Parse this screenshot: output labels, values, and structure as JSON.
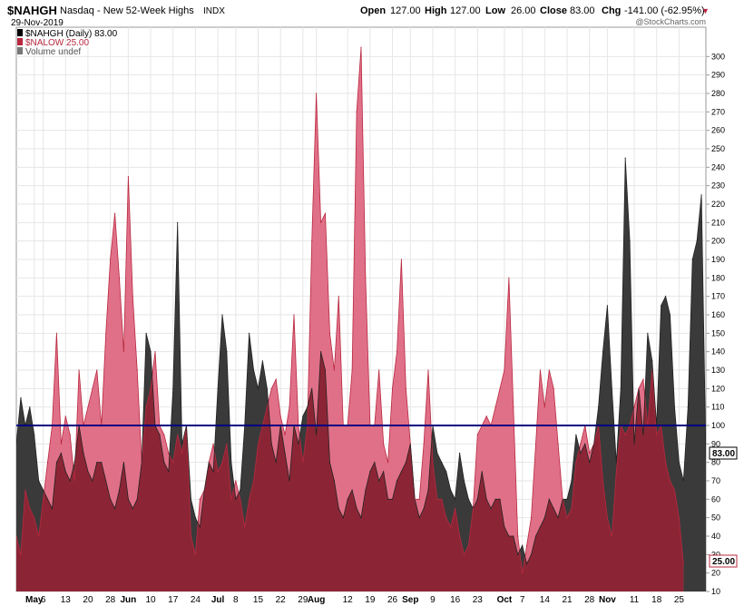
{
  "header": {
    "symbol": "$NAHGH",
    "name": "Nasdaq - New 52-Week Highs",
    "exchange": "INDX",
    "date": "29-Nov-2019",
    "open_label": "Open",
    "open": "127.00",
    "high_label": "High",
    "high": "127.00",
    "low_label": "Low",
    "low": "26.00",
    "close_label": "Close",
    "close": "83.00",
    "chg_label": "Chg",
    "chg": "-141.00 (-62.95%)",
    "chg_arrow": "▼",
    "watermark": "@StockCharts.com"
  },
  "legend": [
    {
      "text": "$NAHGH (Daily) 83.00",
      "color": "#000000"
    },
    {
      "text": "$NALOW 25.00",
      "color": "#b8283f"
    },
    {
      "text": "Volume undef",
      "color": "#555555"
    }
  ],
  "price_labels": {
    "highs": "83.00",
    "lows": "25.00"
  },
  "colors": {
    "highs_fill": "#3a3a3a",
    "lows_fill": "#e07088",
    "overlap_fill": "#8b2535",
    "lows_line": "#b8283f",
    "ref_line": "#000080",
    "grid": "#e6e6e6"
  },
  "chart_data": {
    "type": "area",
    "title": "$NAHGH Nasdaq - New 52-Week Highs",
    "ylim": [
      10,
      310
    ],
    "yticks": [
      10,
      20,
      30,
      40,
      50,
      60,
      70,
      80,
      90,
      100,
      110,
      120,
      130,
      140,
      150,
      160,
      170,
      180,
      190,
      200,
      210,
      220,
      230,
      240,
      250,
      260,
      270,
      280,
      290,
      300
    ],
    "reference_line": 100,
    "x_tick_labels": [
      {
        "label": "May",
        "index": 4,
        "bold": true
      },
      {
        "label": "6",
        "index": 6
      },
      {
        "label": "13",
        "index": 11
      },
      {
        "label": "20",
        "index": 16
      },
      {
        "label": "28",
        "index": 21
      },
      {
        "label": "Jun",
        "index": 25,
        "bold": true
      },
      {
        "label": "10",
        "index": 30
      },
      {
        "label": "17",
        "index": 35
      },
      {
        "label": "24",
        "index": 40
      },
      {
        "label": "Jul",
        "index": 45,
        "bold": true
      },
      {
        "label": "8",
        "index": 49
      },
      {
        "label": "15",
        "index": 54
      },
      {
        "label": "22",
        "index": 59
      },
      {
        "label": "29",
        "index": 64
      },
      {
        "label": "Aug",
        "index": 67,
        "bold": true
      },
      {
        "label": "12",
        "index": 74
      },
      {
        "label": "19",
        "index": 79
      },
      {
        "label": "26",
        "index": 84
      },
      {
        "label": "Sep",
        "index": 88,
        "bold": true
      },
      {
        "label": "9",
        "index": 93
      },
      {
        "label": "16",
        "index": 98
      },
      {
        "label": "23",
        "index": 103
      },
      {
        "label": "Oct",
        "index": 109,
        "bold": true
      },
      {
        "label": "7",
        "index": 113
      },
      {
        "label": "14",
        "index": 118
      },
      {
        "label": "21",
        "index": 123
      },
      {
        "label": "28",
        "index": 128
      },
      {
        "label": "Nov",
        "index": 132,
        "bold": true
      },
      {
        "label": "11",
        "index": 138
      },
      {
        "label": "18",
        "index": 143
      },
      {
        "label": "25",
        "index": 148
      }
    ],
    "series": [
      {
        "name": "$NAHGH (Daily) 83.00",
        "values": [
          90,
          115,
          100,
          110,
          95,
          70,
          65,
          60,
          55,
          80,
          85,
          75,
          70,
          80,
          100,
          85,
          75,
          70,
          80,
          80,
          70,
          60,
          55,
          65,
          80,
          60,
          55,
          60,
          80,
          150,
          140,
          100,
          95,
          80,
          75,
          120,
          210,
          90,
          100,
          60,
          50,
          45,
          65,
          80,
          75,
          120,
          160,
          140,
          80,
          60,
          65,
          100,
          150,
          130,
          120,
          135,
          120,
          90,
          80,
          100,
          85,
          70,
          100,
          90,
          105,
          110,
          120,
          95,
          140,
          130,
          80,
          70,
          55,
          50,
          60,
          65,
          55,
          50,
          65,
          75,
          80,
          70,
          75,
          60,
          60,
          70,
          75,
          80,
          90,
          60,
          50,
          55,
          65,
          100,
          85,
          80,
          75,
          65,
          60,
          85,
          70,
          60,
          55,
          60,
          75,
          60,
          55,
          60,
          60,
          45,
          40,
          40,
          30,
          35,
          25,
          30,
          40,
          45,
          50,
          60,
          55,
          50,
          60,
          60,
          70,
          95,
          85,
          90,
          80,
          90,
          110,
          140,
          165,
          120,
          80,
          120,
          245,
          200,
          90,
          120,
          95,
          150,
          135,
          100,
          165,
          170,
          160,
          110,
          80,
          70,
          110,
          190,
          200,
          225,
          83
        ]
      },
      {
        "name": "$NALOW 25.00",
        "values": [
          40,
          30,
          65,
          55,
          50,
          40,
          60,
          80,
          100,
          150,
          90,
          105,
          95,
          70,
          130,
          100,
          110,
          120,
          130,
          100,
          150,
          190,
          215,
          180,
          140,
          235,
          170,
          130,
          80,
          110,
          120,
          140,
          100,
          95,
          85,
          80,
          95,
          85,
          100,
          40,
          30,
          60,
          65,
          80,
          90,
          75,
          80,
          90,
          60,
          70,
          60,
          45,
          60,
          70,
          90,
          100,
          110,
          120,
          125,
          105,
          95,
          110,
          160,
          100,
          80,
          100,
          200,
          280,
          210,
          215,
          150,
          130,
          170,
          100,
          100,
          130,
          270,
          305,
          180,
          100,
          100,
          130,
          90,
          80,
          120,
          140,
          190,
          120,
          90,
          60,
          60,
          90,
          130,
          80,
          60,
          60,
          50,
          45,
          55,
          40,
          30,
          35,
          55,
          95,
          100,
          105,
          100,
          110,
          120,
          130,
          180,
          110,
          40,
          20,
          35,
          50,
          90,
          130,
          110,
          130,
          120,
          90,
          60,
          50,
          55,
          80,
          90,
          100,
          85,
          90,
          100,
          70,
          50,
          40,
          75,
          100,
          95,
          100,
          110,
          120,
          125,
          100,
          130,
          95,
          100,
          80,
          70,
          65,
          50,
          25
        ]
      }
    ]
  }
}
